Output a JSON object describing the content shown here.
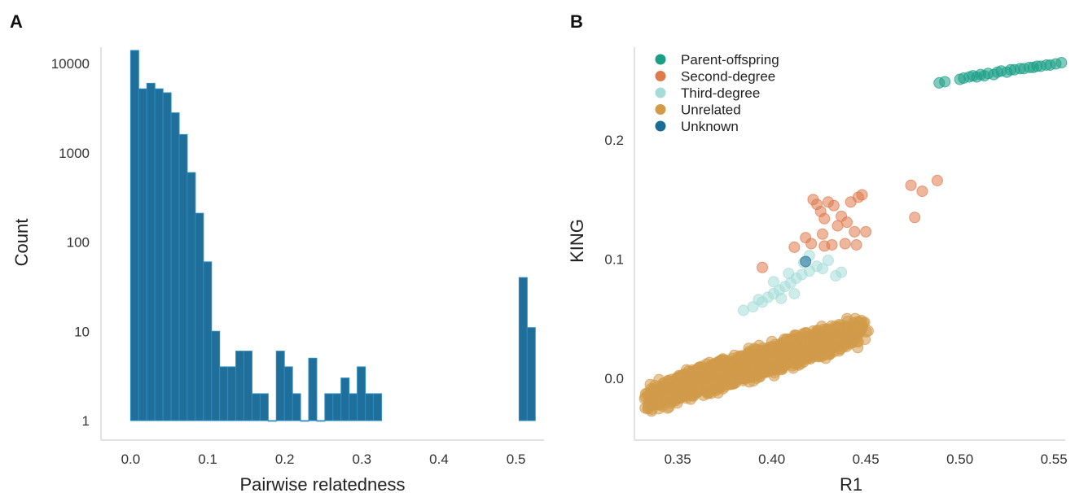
{
  "chart_data": [
    {
      "panel": "A",
      "type": "bar",
      "xlabel": "Pairwise relatedness",
      "ylabel": "Count",
      "yscale": "log",
      "xlim": [
        -0.03,
        0.53
      ],
      "ylim": [
        1,
        14000
      ],
      "xticks": [
        0.0,
        0.1,
        0.2,
        0.3,
        0.4,
        0.5
      ],
      "xtick_labels": [
        "0.0",
        "0.1",
        "0.2",
        "0.3",
        "0.4",
        "0.5"
      ],
      "yticks": [
        1,
        10,
        100,
        1000,
        10000
      ],
      "ytick_labels": [
        "1",
        "10",
        "100",
        "1000",
        "10000"
      ],
      "bin_width": 0.0105,
      "bins": [
        {
          "x": 0.0,
          "count": 14000
        },
        {
          "x": 0.0105,
          "count": 5200
        },
        {
          "x": 0.021,
          "count": 6000
        },
        {
          "x": 0.0315,
          "count": 5200
        },
        {
          "x": 0.042,
          "count": 4700
        },
        {
          "x": 0.0525,
          "count": 2800
        },
        {
          "x": 0.063,
          "count": 1600
        },
        {
          "x": 0.0735,
          "count": 600
        },
        {
          "x": 0.084,
          "count": 210
        },
        {
          "x": 0.0945,
          "count": 60
        },
        {
          "x": 0.105,
          "count": 10
        },
        {
          "x": 0.1155,
          "count": 4
        },
        {
          "x": 0.126,
          "count": 4
        },
        {
          "x": 0.1365,
          "count": 6
        },
        {
          "x": 0.147,
          "count": 6
        },
        {
          "x": 0.1575,
          "count": 2
        },
        {
          "x": 0.168,
          "count": 2
        },
        {
          "x": 0.1785,
          "count": 1
        },
        {
          "x": 0.189,
          "count": 6
        },
        {
          "x": 0.1995,
          "count": 4
        },
        {
          "x": 0.21,
          "count": 2
        },
        {
          "x": 0.2205,
          "count": 1
        },
        {
          "x": 0.231,
          "count": 5
        },
        {
          "x": 0.2415,
          "count": 1
        },
        {
          "x": 0.252,
          "count": 2
        },
        {
          "x": 0.2625,
          "count": 2
        },
        {
          "x": 0.273,
          "count": 3
        },
        {
          "x": 0.2835,
          "count": 2
        },
        {
          "x": 0.294,
          "count": 4
        },
        {
          "x": 0.3045,
          "count": 2
        },
        {
          "x": 0.315,
          "count": 2
        },
        {
          "x": 0.504,
          "count": 40
        },
        {
          "x": 0.5145,
          "count": 11
        }
      ],
      "bar_color": "#1f6f9a",
      "bar_edge_color": "#2c8cc0",
      "grid": false
    },
    {
      "panel": "B",
      "type": "scatter",
      "xlabel": "R1",
      "ylabel": "KING",
      "xlim": [
        0.327,
        0.556
      ],
      "ylim": [
        -0.052,
        0.278
      ],
      "xticks": [
        0.35,
        0.4,
        0.45,
        0.5,
        0.55
      ],
      "xtick_labels": [
        "0.35",
        "0.40",
        "0.45",
        "0.50",
        "0.55"
      ],
      "yticks": [
        0.0,
        0.1,
        0.2
      ],
      "ytick_labels": [
        "0.0",
        "0.1",
        "0.2"
      ],
      "legend_position": "top-left",
      "grid": false,
      "series": [
        {
          "name": "Parent-offspring",
          "color": "#1a9e86",
          "points": [
            [
              0.489,
              0.248
            ],
            [
              0.492,
              0.249
            ],
            [
              0.5,
              0.251
            ],
            [
              0.502,
              0.252
            ],
            [
              0.505,
              0.253
            ],
            [
              0.507,
              0.254
            ],
            [
              0.509,
              0.253
            ],
            [
              0.511,
              0.255
            ],
            [
              0.513,
              0.254
            ],
            [
              0.515,
              0.256
            ],
            [
              0.518,
              0.255
            ],
            [
              0.52,
              0.257
            ],
            [
              0.522,
              0.258
            ],
            [
              0.525,
              0.257
            ],
            [
              0.527,
              0.259
            ],
            [
              0.529,
              0.259
            ],
            [
              0.532,
              0.26
            ],
            [
              0.534,
              0.26
            ],
            [
              0.537,
              0.261
            ],
            [
              0.539,
              0.261
            ],
            [
              0.541,
              0.262
            ],
            [
              0.543,
              0.262
            ],
            [
              0.546,
              0.263
            ],
            [
              0.548,
              0.263
            ],
            [
              0.551,
              0.264
            ],
            [
              0.554,
              0.265
            ]
          ]
        },
        {
          "name": "Second-degree",
          "color": "#de7a4c",
          "points": [
            [
              0.422,
              0.15
            ],
            [
              0.424,
              0.146
            ],
            [
              0.426,
              0.14
            ],
            [
              0.428,
              0.134
            ],
            [
              0.43,
              0.148
            ],
            [
              0.435,
              0.128
            ],
            [
              0.437,
              0.136
            ],
            [
              0.44,
              0.131
            ],
            [
              0.442,
              0.148
            ],
            [
              0.444,
              0.123
            ],
            [
              0.446,
              0.152
            ],
            [
              0.448,
              0.154
            ],
            [
              0.45,
              0.123
            ],
            [
              0.445,
              0.112
            ],
            [
              0.439,
              0.113
            ],
            [
              0.432,
              0.112
            ],
            [
              0.428,
              0.111
            ],
            [
              0.421,
              0.113
            ],
            [
              0.418,
              0.118
            ],
            [
              0.412,
              0.11
            ],
            [
              0.395,
              0.093
            ],
            [
              0.476,
              0.135
            ],
            [
              0.48,
              0.157
            ],
            [
              0.488,
              0.166
            ],
            [
              0.474,
              0.162
            ],
            [
              0.427,
              0.121
            ],
            [
              0.433,
              0.145
            ]
          ]
        },
        {
          "name": "Third-degree",
          "color": "#a6dcd8",
          "points": [
            [
              0.385,
              0.057
            ],
            [
              0.39,
              0.06
            ],
            [
              0.395,
              0.064
            ],
            [
              0.398,
              0.068
            ],
            [
              0.401,
              0.071
            ],
            [
              0.404,
              0.074
            ],
            [
              0.407,
              0.077
            ],
            [
              0.41,
              0.08
            ],
            [
              0.413,
              0.084
            ],
            [
              0.416,
              0.087
            ],
            [
              0.42,
              0.09
            ],
            [
              0.424,
              0.094
            ],
            [
              0.43,
              0.099
            ],
            [
              0.434,
              0.086
            ],
            [
              0.437,
              0.089
            ],
            [
              0.42,
              0.103
            ],
            [
              0.417,
              0.097
            ],
            [
              0.409,
              0.088
            ],
            [
              0.401,
              0.081
            ],
            [
              0.393,
              0.066
            ],
            [
              0.427,
              0.092
            ],
            [
              0.412,
              0.071
            ],
            [
              0.405,
              0.067
            ]
          ]
        },
        {
          "name": "Unrelated",
          "color": "#d29b4a",
          "cloud": {
            "count": 2600,
            "x_range": [
              0.33,
              0.452
            ],
            "center_slope": 0.508,
            "center_intercept": -0.1867,
            "half_width": 0.016
          }
        },
        {
          "name": "Unknown",
          "color": "#1a6b98",
          "points": [
            [
              0.418,
              0.098
            ]
          ]
        }
      ]
    }
  ],
  "panels": {
    "a": {
      "letter": "A"
    },
    "b": {
      "letter": "B"
    }
  }
}
